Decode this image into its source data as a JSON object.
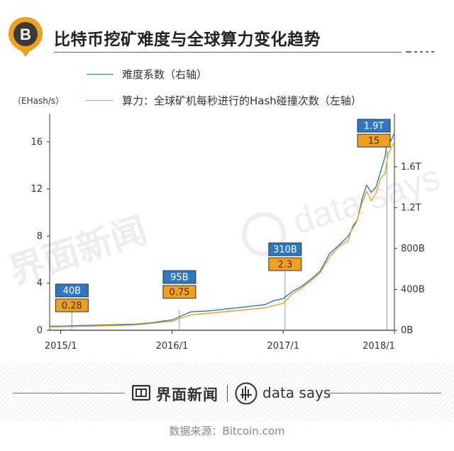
{
  "header": {
    "title": "比特币挖矿难度与全球算力变化趋势",
    "icon_symbol": "B"
  },
  "legend": {
    "difficulty": "难度系数（右轴）",
    "hashrate": "算力：全球矿机每秒进行的Hash碰撞次数（左轴）"
  },
  "colors": {
    "difficulty": "#2e78c0",
    "hashrate": "#f0a020",
    "badge_orange": "#f0a020"
  },
  "chart_data": {
    "type": "line",
    "title": "比特币挖矿难度与全球算力变化趋势",
    "ylabel_left": "（EHash/s）",
    "ylim_left": [
      0,
      18.4
    ],
    "ylim_right": [
      0,
      2.12
    ],
    "left_ticks": [
      "0",
      "4",
      "8",
      "12",
      "16"
    ],
    "left_tick_values": [
      0,
      4,
      8,
      12,
      16
    ],
    "right_ticks": [
      "0B",
      "400B",
      "800B",
      "1.2T",
      "1.6T"
    ],
    "right_tick_values": [
      0,
      0.4,
      0.8,
      1.2,
      1.6
    ],
    "x_ticks": [
      "2015/1",
      "2016/1",
      "2017/1",
      "2018/1"
    ],
    "x_tick_values": [
      0,
      12,
      24,
      36
    ],
    "xlim": [
      -1.2,
      36
    ],
    "series": [
      {
        "name": "难度系数（右轴）",
        "axis": "right",
        "x": [
          -1.2,
          0,
          2,
          4,
          6,
          8,
          10,
          11,
          12,
          13,
          14,
          16,
          18,
          20,
          22,
          23,
          24,
          25,
          26,
          27,
          28,
          29,
          30,
          31,
          31.5,
          32,
          32.5,
          33,
          33.5,
          34,
          34.5,
          35,
          35.3,
          35.6,
          36
        ],
        "values": [
          0.04,
          0.04,
          0.045,
          0.05,
          0.055,
          0.06,
          0.075,
          0.09,
          0.1,
          0.14,
          0.18,
          0.19,
          0.21,
          0.23,
          0.25,
          0.29,
          0.31,
          0.38,
          0.43,
          0.5,
          0.58,
          0.75,
          0.83,
          0.92,
          1.0,
          1.08,
          1.28,
          1.42,
          1.35,
          1.4,
          1.55,
          1.7,
          1.9,
          1.85,
          1.93
        ]
      },
      {
        "name": "算力：全球矿机每秒进行的Hash碰撞次数（左轴）",
        "axis": "left",
        "x": [
          -1.2,
          0,
          2,
          4,
          6,
          8,
          10,
          11,
          12,
          13,
          14,
          16,
          18,
          20,
          22,
          23,
          24,
          25,
          26,
          27,
          28,
          29,
          30,
          31,
          31.5,
          32,
          32.5,
          33,
          33.5,
          34,
          34.5,
          35,
          35.3,
          35.6,
          36
        ],
        "values": [
          0.28,
          0.3,
          0.32,
          0.36,
          0.4,
          0.45,
          0.6,
          0.7,
          0.75,
          1.05,
          1.3,
          1.45,
          1.6,
          1.75,
          1.9,
          2.1,
          2.3,
          3.1,
          3.6,
          4.2,
          4.9,
          6.2,
          7.1,
          7.6,
          8.9,
          9.4,
          10.8,
          11.8,
          11.0,
          11.6,
          12.9,
          13.3,
          15.0,
          15.4,
          16.0
        ]
      }
    ],
    "annotations": [
      {
        "x": 1.2,
        "difficulty_label": "40B",
        "hashrate_label": "0.28"
      },
      {
        "x": 12.8,
        "difficulty_label": "95B",
        "hashrate_label": "0.75"
      },
      {
        "x": 24.2,
        "difficulty_label": "310B",
        "hashrate_label": "2.3"
      },
      {
        "x": 35.2,
        "difficulty_label": "1.9T",
        "hashrate_label": "15"
      }
    ]
  },
  "footer": {
    "brand_left": "界面新闻",
    "brand_right": "data says",
    "source": "数据来源：Bitcoin.com"
  }
}
